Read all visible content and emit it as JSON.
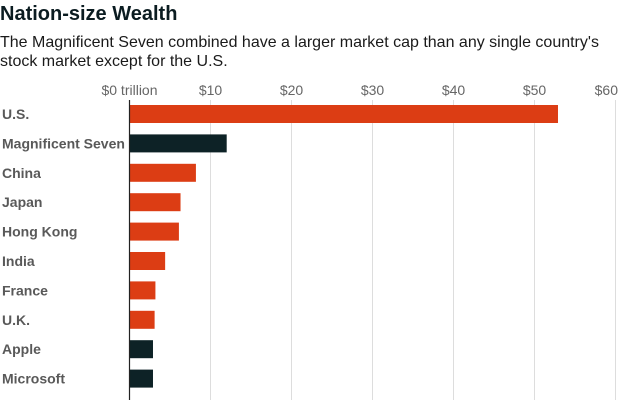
{
  "header": {
    "title": "Nation-size Wealth",
    "subtitle": "The Magnificent Seven combined have a larger market cap than any single country's stock market except for the U.S."
  },
  "colors": {
    "country": "#dc3d14",
    "company": "#0d2226",
    "gridline": "#dddddd",
    "axis": "#222222"
  },
  "chart_data": {
    "type": "bar",
    "orientation": "horizontal",
    "title": "Nation-size Wealth",
    "subtitle": "The Magnificent Seven combined have a larger market cap than any single country's stock market except for the U.S.",
    "xlim": [
      0,
      60
    ],
    "x_tick_values": [
      0,
      10,
      20,
      30,
      40,
      50,
      60
    ],
    "x_tick_labels": [
      "$0 trillion",
      "$10",
      "$20",
      "$30",
      "$40",
      "$50",
      "$60"
    ],
    "grid": true,
    "legend": "none",
    "categories": [
      "U.S.",
      "Magnificent Seven",
      "China",
      "Japan",
      "Hong Kong",
      "India",
      "France",
      "U.K.",
      "Apple",
      "Microsoft"
    ],
    "values": [
      52.9,
      12.0,
      8.2,
      6.3,
      6.1,
      4.4,
      3.2,
      3.1,
      2.9,
      2.9
    ],
    "groups": [
      "country",
      "company",
      "country",
      "country",
      "country",
      "country",
      "country",
      "country",
      "company",
      "company"
    ]
  }
}
